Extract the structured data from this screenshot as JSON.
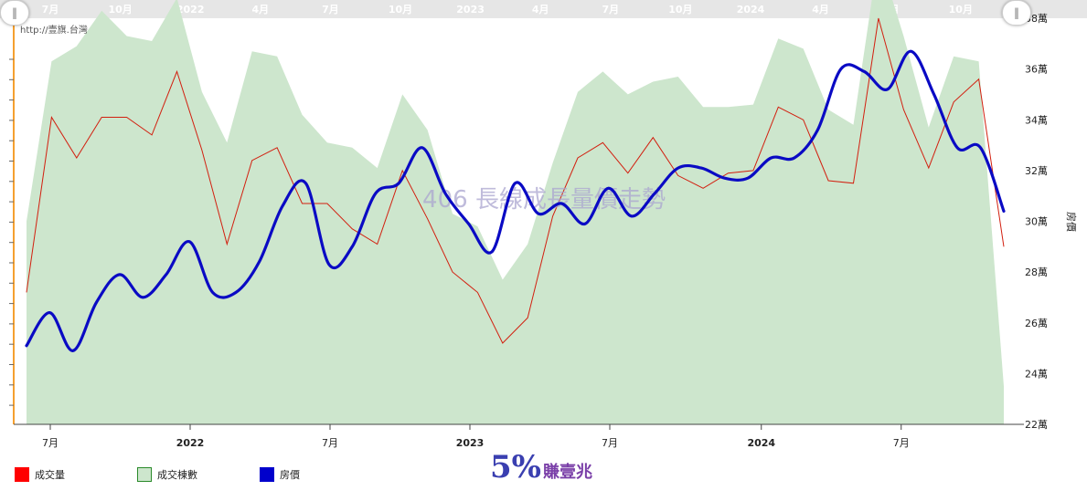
{
  "source_text": "http://壹旗.台灣",
  "watermark": "406 長線成長量價走勢",
  "brand": {
    "percent": "5%",
    "name": "賺壹兆"
  },
  "navigator_labels": [
    "7月",
    "10月",
    "2022",
    "4月",
    "7月",
    "10月",
    "2023",
    "4月",
    "7月",
    "10月",
    "2024",
    "4月",
    "7月",
    "10月"
  ],
  "colors": {
    "volume_line": "#d21f0f",
    "listings_fill": "#cde6cd",
    "price_line": "#0a0ac4",
    "axis_accent": "#f5a030",
    "navigator_bg": "#e6e6e6"
  },
  "legend": [
    {
      "label": "成交量",
      "color": "#ff0000",
      "border": "#ff0000"
    },
    {
      "label": "成交棟數",
      "color": "#cde6cd",
      "border": "#2a8a2a"
    },
    {
      "label": "房價",
      "color": "#0000cc",
      "border": "#0000cc"
    }
  ],
  "chart_data": {
    "type": "line",
    "x_start": "2021-06",
    "x_end": "2024-11",
    "x_ticks": [
      {
        "month": 1,
        "label": "7月",
        "year": false
      },
      {
        "month": 7,
        "label": "2022",
        "year": true
      },
      {
        "month": 13,
        "label": "7月",
        "year": false
      },
      {
        "month": 19,
        "label": "2023",
        "year": true
      },
      {
        "month": 25,
        "label": "7月",
        "year": false
      },
      {
        "month": 31.5,
        "label": "2024",
        "year": true
      },
      {
        "month": 37.5,
        "label": "7月",
        "year": false
      }
    ],
    "ylabel_right": "房價",
    "y_right_ticks": [
      "22萬",
      "24萬",
      "26萬",
      "28萬",
      "30萬",
      "32萬",
      "34萬",
      "36萬",
      "38萬"
    ],
    "y_right_range": [
      22,
      38
    ],
    "series": [
      {
        "name": "成交棟數",
        "kind": "area",
        "values": [
          30.0,
          36.3,
          36.9,
          38.3,
          37.3,
          37.1,
          38.8,
          35.1,
          33.1,
          36.7,
          36.5,
          34.2,
          33.1,
          32.9,
          32.1,
          35.0,
          33.6,
          30.3,
          29.8,
          27.7,
          29.1,
          32.3,
          35.1,
          35.9,
          35.0,
          35.5,
          35.7,
          34.5,
          34.5,
          34.6,
          37.2,
          36.8,
          34.4,
          33.8,
          40.5,
          37.3,
          33.7,
          36.5,
          36.3,
          23.5
        ]
      },
      {
        "name": "成交量",
        "kind": "line",
        "values": [
          27.2,
          34.1,
          32.5,
          34.1,
          34.1,
          33.4,
          35.9,
          32.8,
          29.1,
          32.4,
          32.9,
          30.7,
          30.7,
          29.7,
          29.1,
          32.0,
          30.1,
          28.0,
          27.2,
          25.2,
          26.2,
          30.2,
          32.5,
          33.1,
          31.9,
          33.3,
          31.8,
          31.3,
          31.9,
          32.0,
          34.5,
          34.0,
          31.6,
          31.5,
          38.0,
          34.4,
          32.1,
          34.7,
          35.6,
          29.0
        ]
      },
      {
        "name": "房價",
        "kind": "smooth_line",
        "values": [
          25.1,
          26.4,
          24.9,
          26.8,
          27.9,
          27.0,
          27.9,
          29.2,
          27.2,
          27.2,
          28.4,
          30.6,
          31.5,
          28.3,
          29.0,
          31.1,
          31.5,
          32.9,
          31.1,
          29.9,
          28.8,
          31.5,
          30.3,
          30.7,
          29.9,
          31.3,
          30.2,
          31.1,
          32.1,
          32.1,
          31.7,
          31.7,
          32.5,
          32.5,
          33.6,
          36.0,
          35.9,
          35.2,
          36.7,
          35.0,
          32.9,
          32.9,
          30.4
        ]
      }
    ]
  }
}
